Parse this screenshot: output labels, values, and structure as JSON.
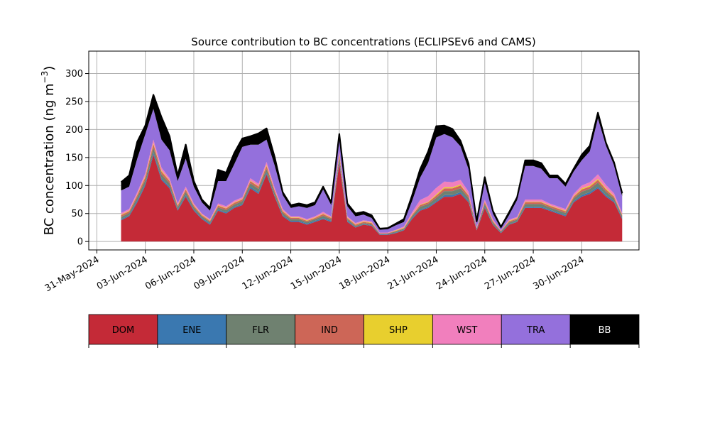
{
  "chart_data": {
    "type": "area",
    "title": "Source contribution to BC concentrations (ECLIPSEv6 and CAMS)",
    "ylabel": "BC concentration (ng m",
    "ylabel_sup": "−3",
    "ylabel_end": ")",
    "xlabel": "",
    "grid": true,
    "ylim": [
      -15,
      340
    ],
    "yticks": [
      0,
      50,
      100,
      150,
      200,
      250,
      300
    ],
    "xlim": [
      "2024-05-30T12:00",
      "2024-07-03T13:00"
    ],
    "xticks": [
      "2024-05-31",
      "2024-06-03",
      "2024-06-06",
      "2024-06-09",
      "2024-06-12",
      "2024-06-15",
      "2024-06-18",
      "2024-06-21",
      "2024-06-24",
      "2024-06-27",
      "2024-06-30"
    ],
    "xtick_labels": [
      "31-May-2024",
      "03-Jun-2024",
      "06-Jun-2024",
      "09-Jun-2024",
      "12-Jun-2024",
      "15-Jun-2024",
      "18-Jun-2024",
      "21-Jun-2024",
      "24-Jun-2024",
      "27-Jun-2024",
      "30-Jun-2024"
    ],
    "series_colors": {
      "DOM": "#c42a37",
      "ENE": "#3a78b0",
      "FLR": "#6f8170",
      "IND": "#cd6657",
      "SHP": "#e8cf2e",
      "WST": "#f17fbd",
      "TRA": "#9470dc",
      "BB": "#000000"
    },
    "x": [
      "2024-06-01T12:00",
      "2024-06-02T00:00",
      "2024-06-02T12:00",
      "2024-06-03T00:00",
      "2024-06-03T12:00",
      "2024-06-04T00:00",
      "2024-06-04T12:00",
      "2024-06-05T00:00",
      "2024-06-05T12:00",
      "2024-06-06T00:00",
      "2024-06-06T12:00",
      "2024-06-07T00:00",
      "2024-06-07T12:00",
      "2024-06-08T00:00",
      "2024-06-08T12:00",
      "2024-06-09T00:00",
      "2024-06-09T12:00",
      "2024-06-10T00:00",
      "2024-06-10T12:00",
      "2024-06-11T00:00",
      "2024-06-11T12:00",
      "2024-06-12T00:00",
      "2024-06-12T12:00",
      "2024-06-13T00:00",
      "2024-06-13T12:00",
      "2024-06-14T00:00",
      "2024-06-14T12:00",
      "2024-06-15T00:00",
      "2024-06-15T12:00",
      "2024-06-16T00:00",
      "2024-06-16T12:00",
      "2024-06-17T00:00",
      "2024-06-17T12:00",
      "2024-06-18T00:00",
      "2024-06-18T12:00",
      "2024-06-19T00:00",
      "2024-06-19T12:00",
      "2024-06-20T00:00",
      "2024-06-20T12:00",
      "2024-06-21T00:00",
      "2024-06-21T12:00",
      "2024-06-22T00:00",
      "2024-06-22T12:00",
      "2024-06-23T00:00",
      "2024-06-23T12:00",
      "2024-06-24T00:00",
      "2024-06-24T12:00",
      "2024-06-25T00:00",
      "2024-06-25T12:00",
      "2024-06-26T00:00",
      "2024-06-26T12:00",
      "2024-06-27T00:00",
      "2024-06-27T12:00",
      "2024-06-28T00:00",
      "2024-06-28T12:00",
      "2024-06-29T00:00",
      "2024-06-29T12:00",
      "2024-06-30T00:00",
      "2024-06-30T12:00",
      "2024-07-01T00:00",
      "2024-07-01T12:00",
      "2024-07-02T00:00",
      "2024-07-02T12:00"
    ],
    "series": [
      {
        "name": "DOM",
        "values": [
          38,
          45,
          70,
          100,
          155,
          110,
          95,
          55,
          80,
          55,
          40,
          30,
          55,
          50,
          60,
          65,
          95,
          85,
          120,
          80,
          45,
          35,
          35,
          30,
          35,
          40,
          35,
          140,
          35,
          25,
          30,
          28,
          12,
          12,
          15,
          20,
          40,
          55,
          60,
          70,
          80,
          80,
          85,
          70,
          20,
          60,
          30,
          15,
          30,
          35,
          60,
          60,
          60,
          55,
          50,
          45,
          70,
          80,
          85,
          95,
          80,
          70,
          40
        ]
      },
      {
        "name": "ENE",
        "values": [
          2,
          2,
          3,
          3,
          4,
          3,
          3,
          2,
          3,
          2,
          2,
          2,
          2,
          2,
          2,
          2,
          3,
          3,
          3,
          2,
          2,
          2,
          2,
          2,
          2,
          2,
          2,
          3,
          2,
          1,
          1,
          1,
          1,
          1,
          1,
          1,
          2,
          2,
          2,
          2,
          3,
          3,
          3,
          2,
          1,
          2,
          1,
          1,
          1,
          1,
          2,
          2,
          2,
          2,
          2,
          2,
          2,
          3,
          3,
          3,
          3,
          2,
          2
        ]
      },
      {
        "name": "FLR",
        "values": [
          4,
          4,
          6,
          7,
          9,
          7,
          6,
          4,
          6,
          4,
          3,
          3,
          4,
          4,
          4,
          5,
          6,
          6,
          7,
          5,
          4,
          3,
          3,
          3,
          3,
          4,
          3,
          7,
          3,
          2,
          2,
          2,
          1,
          1,
          2,
          2,
          3,
          5,
          5,
          6,
          7,
          7,
          7,
          6,
          2,
          5,
          3,
          2,
          3,
          3,
          5,
          5,
          5,
          4,
          4,
          4,
          5,
          6,
          6,
          7,
          6,
          5,
          3
        ]
      },
      {
        "name": "IND",
        "values": [
          3,
          3,
          4,
          5,
          6,
          5,
          4,
          3,
          4,
          3,
          2,
          2,
          3,
          3,
          3,
          3,
          4,
          4,
          5,
          4,
          3,
          2,
          2,
          2,
          2,
          3,
          2,
          5,
          2,
          2,
          2,
          2,
          1,
          1,
          1,
          1,
          2,
          3,
          3,
          4,
          5,
          5,
          5,
          4,
          1,
          3,
          2,
          1,
          2,
          2,
          3,
          3,
          3,
          3,
          3,
          3,
          3,
          4,
          4,
          5,
          4,
          3,
          2
        ]
      },
      {
        "name": "SHP",
        "values": [
          1,
          1,
          1,
          2,
          2,
          2,
          1,
          1,
          1,
          1,
          1,
          1,
          1,
          1,
          1,
          1,
          1,
          1,
          2,
          1,
          1,
          1,
          1,
          1,
          1,
          1,
          1,
          2,
          1,
          1,
          1,
          1,
          0,
          0,
          1,
          1,
          1,
          1,
          1,
          2,
          2,
          2,
          2,
          1,
          0,
          1,
          1,
          0,
          1,
          1,
          1,
          1,
          1,
          1,
          1,
          1,
          1,
          2,
          2,
          2,
          2,
          1,
          1
        ]
      },
      {
        "name": "WST",
        "values": [
          3,
          3,
          4,
          5,
          6,
          5,
          4,
          3,
          4,
          3,
          2,
          2,
          3,
          3,
          3,
          3,
          4,
          4,
          5,
          4,
          3,
          2,
          2,
          2,
          2,
          3,
          2,
          5,
          2,
          2,
          2,
          2,
          1,
          1,
          1,
          2,
          4,
          8,
          10,
          12,
          10,
          9,
          8,
          6,
          2,
          4,
          3,
          1,
          2,
          2,
          4,
          4,
          4,
          3,
          3,
          3,
          4,
          5,
          6,
          8,
          6,
          5,
          3
        ]
      },
      {
        "name": "TRA",
        "values": [
          40,
          40,
          60,
          70,
          55,
          50,
          50,
          40,
          50,
          30,
          20,
          15,
          40,
          45,
          65,
          90,
          60,
          70,
          40,
          40,
          25,
          15,
          18,
          20,
          20,
          40,
          20,
          20,
          18,
          12,
          10,
          6,
          5,
          6,
          8,
          8,
          20,
          40,
          60,
          90,
          85,
          80,
          60,
          40,
          8,
          30,
          10,
          3,
          8,
          30,
          60,
          60,
          55,
          45,
          50,
          40,
          40,
          45,
          55,
          100,
          70,
          50,
          30
        ]
      },
      {
        "name": "BB",
        "values": [
          15,
          20,
          30,
          15,
          25,
          40,
          25,
          10,
          25,
          10,
          5,
          5,
          20,
          15,
          20,
          15,
          15,
          20,
          20,
          15,
          5,
          5,
          5,
          5,
          5,
          5,
          5,
          10,
          5,
          5,
          5,
          5,
          2,
          2,
          3,
          5,
          10,
          15,
          20,
          20,
          15,
          15,
          10,
          10,
          2,
          10,
          5,
          3,
          5,
          5,
          10,
          10,
          10,
          5,
          5,
          5,
          5,
          10,
          10,
          10,
          5,
          5,
          5
        ]
      }
    ],
    "legend": [
      "DOM",
      "ENE",
      "FLR",
      "IND",
      "SHP",
      "WST",
      "TRA",
      "BB"
    ],
    "legend_text_colors": {
      "DOM": "#000000",
      "ENE": "#000000",
      "FLR": "#000000",
      "IND": "#000000",
      "SHP": "#000000",
      "WST": "#000000",
      "TRA": "#000000",
      "BB": "#ffffff"
    }
  }
}
